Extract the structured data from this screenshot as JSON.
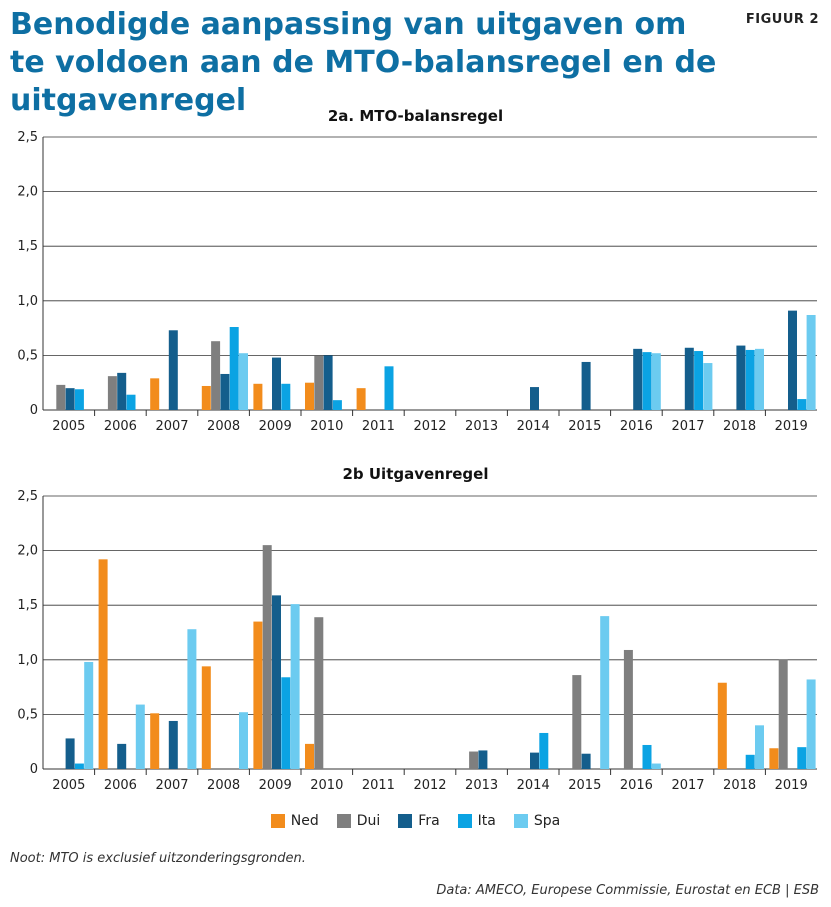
{
  "header": {
    "title": "Benodigde aanpassing van uitgaven om te voldoen aan de MTO-balansregel en de uitgavenregel",
    "figure_label": "FIGUUR 2"
  },
  "colors": {
    "Ned": "#f28c1c",
    "Dui": "#7f7f7f",
    "Fra": "#145e8c",
    "Ita": "#0ba3e3",
    "Spa": "#6ccbf0",
    "title": "#0e6fa3"
  },
  "legend": [
    {
      "name": "Ned",
      "color": "#f28c1c"
    },
    {
      "name": "Dui",
      "color": "#7f7f7f"
    },
    {
      "name": "Fra",
      "color": "#145e8c"
    },
    {
      "name": "Ita",
      "color": "#0ba3e3"
    },
    {
      "name": "Spa",
      "color": "#6ccbf0"
    }
  ],
  "chart_data": [
    {
      "type": "bar",
      "title": "2a. MTO-balansregel",
      "categories": [
        "2005",
        "2006",
        "2007",
        "2008",
        "2009",
        "2010",
        "2011",
        "2012",
        "2013",
        "2014",
        "2015",
        "2016",
        "2017",
        "2018",
        "2019"
      ],
      "ylim": [
        0,
        2.5
      ],
      "yticks": [
        "0",
        "0,5",
        "1,0",
        "1,5",
        "2,0",
        "2,5"
      ],
      "grid": true,
      "series": [
        {
          "name": "Ned",
          "values": [
            0,
            0,
            0.29,
            0.22,
            0.24,
            0.25,
            0.2,
            0,
            0,
            0,
            0,
            0,
            0,
            0,
            0
          ]
        },
        {
          "name": "Dui",
          "values": [
            0.23,
            0.31,
            0,
            0.63,
            0,
            0.5,
            0,
            0,
            0,
            0,
            0,
            0,
            0,
            0,
            0
          ]
        },
        {
          "name": "Fra",
          "values": [
            0.2,
            0.34,
            0.73,
            0.33,
            0.48,
            0.5,
            0,
            0,
            0,
            0.21,
            0.44,
            0.56,
            0.57,
            0.59,
            0.91
          ]
        },
        {
          "name": "Ita",
          "values": [
            0.19,
            0.14,
            0,
            0.76,
            0.24,
            0.09,
            0.4,
            0,
            0,
            0,
            0,
            0.53,
            0.54,
            0.55,
            0.1
          ]
        },
        {
          "name": "Spa",
          "values": [
            0,
            0,
            0,
            0.52,
            0,
            0,
            0,
            0,
            0,
            0,
            0,
            0.52,
            0.43,
            0.56,
            0.87
          ]
        }
      ]
    },
    {
      "type": "bar",
      "title": "2b Uitgavenregel",
      "categories": [
        "2005",
        "2006",
        "2007",
        "2008",
        "2009",
        "2010",
        "2011",
        "2012",
        "2013",
        "2014",
        "2015",
        "2016",
        "2017",
        "2018",
        "2019"
      ],
      "ylim": [
        0,
        2.5
      ],
      "yticks": [
        "0",
        "0,5",
        "1,0",
        "1,5",
        "2,0",
        "2,5"
      ],
      "grid": true,
      "series": [
        {
          "name": "Ned",
          "values": [
            0,
            1.92,
            0.51,
            0.94,
            1.35,
            0.23,
            0,
            0,
            0,
            0,
            0,
            0,
            0,
            0.79,
            0.19
          ]
        },
        {
          "name": "Dui",
          "values": [
            0,
            0,
            0,
            0,
            2.05,
            1.39,
            0,
            0,
            0.16,
            0,
            0.86,
            1.09,
            0,
            0,
            1.0
          ]
        },
        {
          "name": "Fra",
          "values": [
            0.28,
            0.23,
            0.44,
            0,
            1.59,
            0,
            0,
            0,
            0.17,
            0.15,
            0.14,
            0,
            0,
            0,
            0
          ]
        },
        {
          "name": "Ita",
          "values": [
            0.05,
            0,
            0,
            0,
            0.84,
            0,
            0,
            0,
            0,
            0.33,
            0,
            0.22,
            0,
            0.13,
            0.2
          ]
        },
        {
          "name": "Spa",
          "values": [
            0.98,
            0.59,
            1.28,
            0.52,
            1.51,
            0,
            0,
            0,
            0,
            0,
            1.4,
            0.05,
            0,
            0.4,
            0.82
          ]
        }
      ]
    }
  ],
  "footer": {
    "note": "Noot:  MTO is exclusief uitzonderingsgronden.",
    "source": "Data: AMECO, Europese Commissie, Eurostat en ECB | ESB"
  }
}
